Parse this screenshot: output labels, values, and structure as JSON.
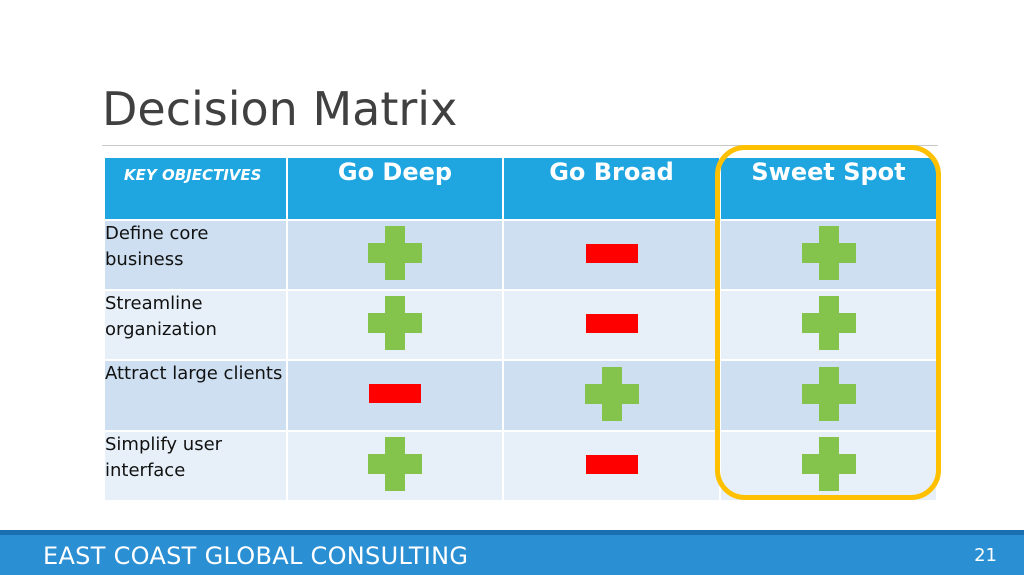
{
  "slide": {
    "title": "Decision Matrix",
    "page_number": "21"
  },
  "matrix": {
    "headers": [
      "KEY OBJECTIVES",
      "Go Deep",
      "Go Broad",
      "Sweet Spot"
    ],
    "rows": [
      {
        "objective": "Define core business",
        "marks": [
          "plus",
          "minus",
          "plus"
        ]
      },
      {
        "objective": "Streamline organization",
        "marks": [
          "plus",
          "minus",
          "plus"
        ]
      },
      {
        "objective": "Attract large clients",
        "marks": [
          "minus",
          "plus",
          "plus"
        ]
      },
      {
        "objective": "Simplify user interface",
        "marks": [
          "plus",
          "minus",
          "plus"
        ]
      }
    ],
    "highlighted_column": "Sweet Spot"
  },
  "footer": {
    "company": "EAST COAST GLOBAL CONSULTING"
  },
  "colors": {
    "header": "#1fa5e0",
    "plus": "#84c44c",
    "minus": "#ff0000",
    "highlight": "#ffc000",
    "footer": "#2a8fd3"
  }
}
